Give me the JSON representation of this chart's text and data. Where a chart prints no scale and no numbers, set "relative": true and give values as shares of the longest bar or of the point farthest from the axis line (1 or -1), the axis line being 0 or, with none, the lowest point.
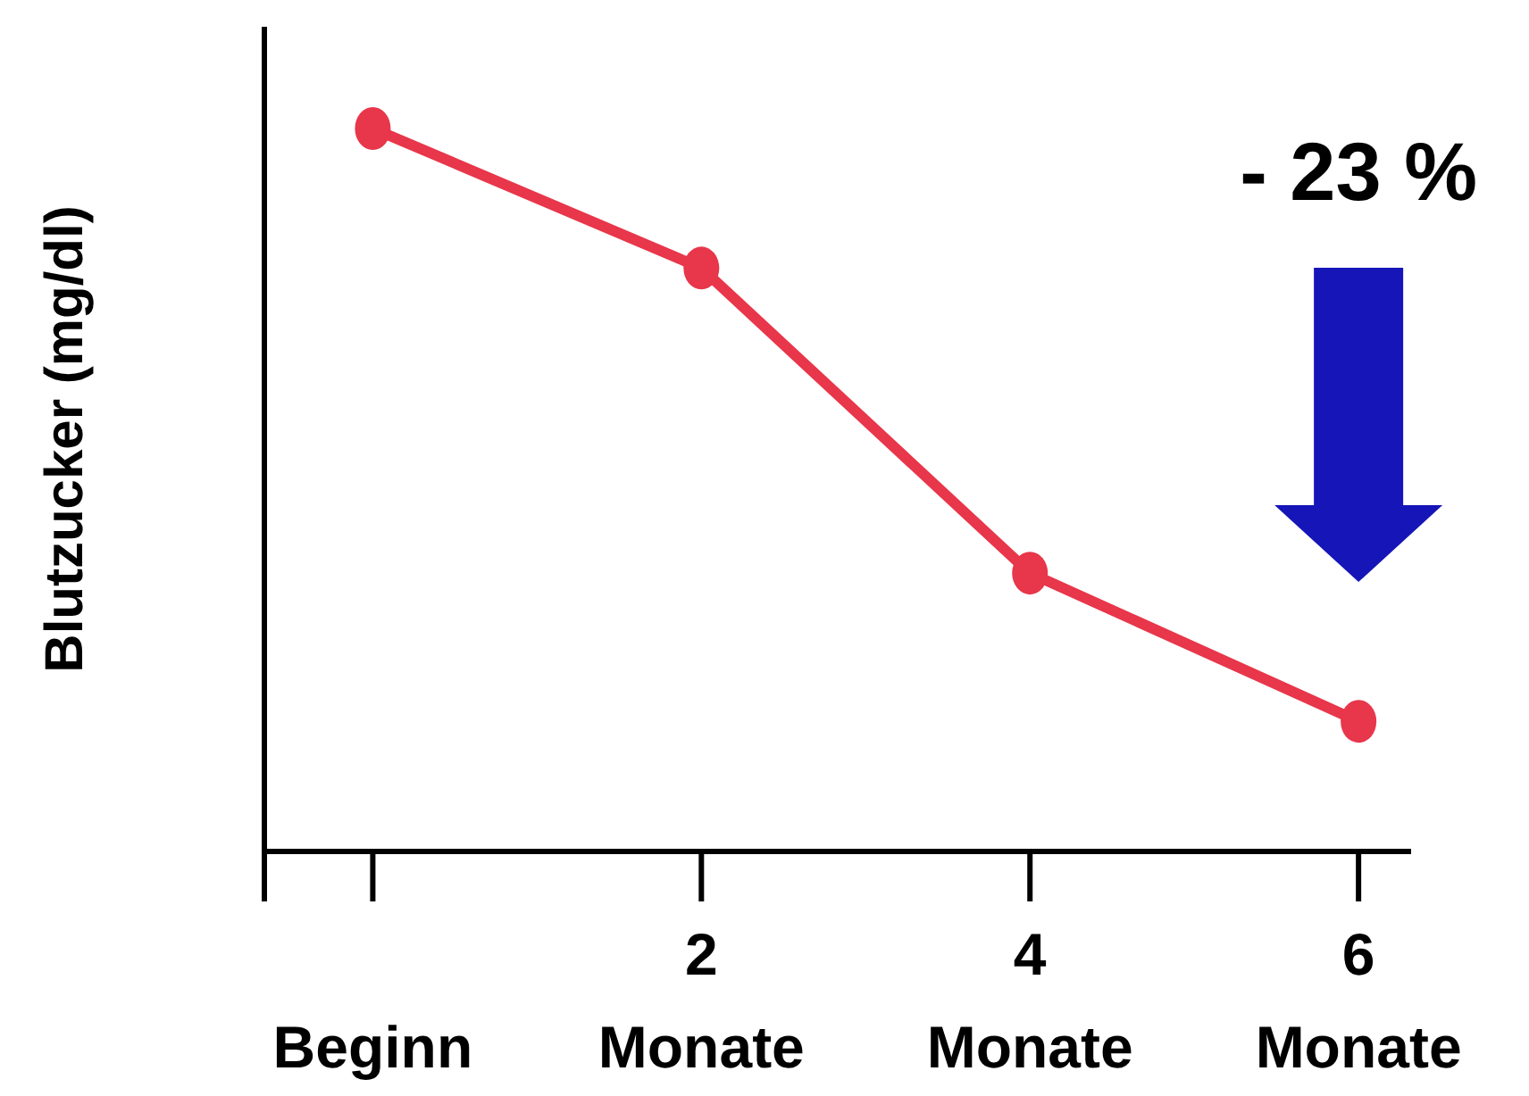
{
  "chart_data": {
    "type": "line",
    "relative": true,
    "ylabel": "Blutzucker (mg/dl)",
    "categories": [
      "Beginn",
      "2 Monate",
      "4 Monate",
      "6 Monate"
    ],
    "series": [
      {
        "color": "#e8364a",
        "values": [
          1,
          0.807,
          0.385,
          0.18
        ]
      }
    ],
    "marker": "circle",
    "line_style": "solid",
    "annotations": [
      "- 23 %"
    ]
  }
}
